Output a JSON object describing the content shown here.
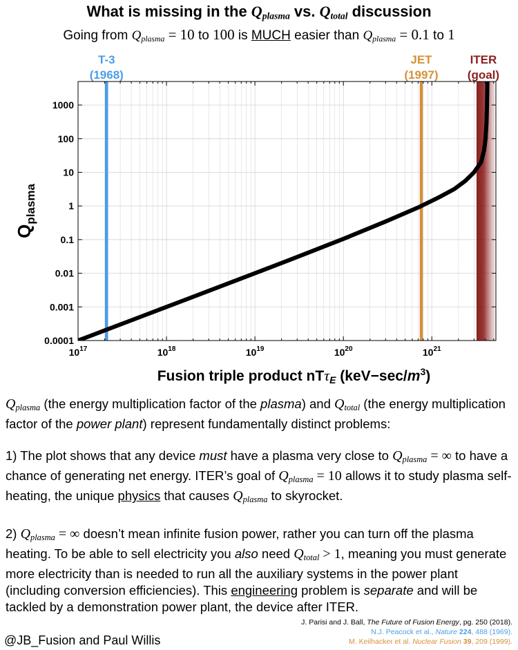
{
  "header": {
    "title_pre": "What is missing in the ",
    "title_mid": " vs. ",
    "title_post": " discussion",
    "q_plasma_base": "Q",
    "q_plasma_sub": "plasma",
    "q_total_base": "Q",
    "q_total_sub": "total",
    "subtitle_pre": "Going from ",
    "subtitle_eq1": " = 10",
    "subtitle_to1": " to ",
    "subtitle_v1": "100",
    "subtitle_is": " is ",
    "subtitle_much": "MUCH",
    "subtitle_easier": " easier than ",
    "subtitle_eq2": " = 0.1",
    "subtitle_to2": " to ",
    "subtitle_v2": "1"
  },
  "chart_data": {
    "type": "line",
    "x_scale": "log",
    "y_scale": "log",
    "xlim": [
      1e+17,
      5.3e+21
    ],
    "ylim": [
      0.0001,
      5000
    ],
    "xlabel_main": "Fusion triple product nT",
    "xlabel_tau": "τ",
    "xlabel_tau_sub": "E",
    "xlabel_units": " (keV−sec/",
    "xlabel_units_m": "m",
    "xlabel_units_exp": "3",
    "xlabel_close": ")",
    "ylabel_base": "Q",
    "ylabel_sub": "plasma",
    "x_ticks": [
      {
        "value": 1e+17,
        "base": "10",
        "exp": "17"
      },
      {
        "value": 1e+18,
        "base": "10",
        "exp": "18"
      },
      {
        "value": 1e+19,
        "base": "10",
        "exp": "19"
      },
      {
        "value": 1e+20,
        "base": "10",
        "exp": "20"
      },
      {
        "value": 1e+21,
        "base": "10",
        "exp": "21"
      }
    ],
    "y_ticks": [
      {
        "value": 0.0001,
        "label": "0.0001"
      },
      {
        "value": 0.001,
        "label": "0.001"
      },
      {
        "value": 0.01,
        "label": "0.01"
      },
      {
        "value": 0.1,
        "label": "0.1"
      },
      {
        "value": 1,
        "label": "1"
      },
      {
        "value": 10,
        "label": "10"
      },
      {
        "value": 100,
        "label": "100"
      },
      {
        "value": 1000,
        "label": "1000"
      }
    ],
    "grid": true,
    "series": [
      {
        "color": "#000000",
        "points": [
          [
            1e+17,
            0.0001
          ],
          [
            2e+17,
            0.0002
          ],
          [
            5e+17,
            0.0005
          ],
          [
            1e+18,
            0.001
          ],
          [
            3e+18,
            0.003
          ],
          [
            1e+19,
            0.01
          ],
          [
            3e+19,
            0.0304
          ],
          [
            1e+20,
            0.105
          ],
          [
            3e+20,
            0.345
          ],
          [
            7e+20,
            0.9
          ],
          [
            1.2e+21,
            1.8
          ],
          [
            1.8e+21,
            3.2
          ],
          [
            2.4e+21,
            5.6
          ],
          [
            3e+21,
            10
          ],
          [
            3.6e+21,
            20
          ],
          [
            3.9e+21,
            45
          ],
          [
            4.05e+21,
            100
          ],
          [
            4.15e+21,
            300
          ],
          [
            4.2e+21,
            1000
          ],
          [
            4.25e+21,
            5000
          ]
        ]
      }
    ],
    "markers": [
      {
        "name": "T-3",
        "year": "(1968)",
        "x": 2.1e+17,
        "color": "#4a9de8"
      },
      {
        "name": "JET",
        "year": "(1997)",
        "x": 7.6e+20,
        "color": "#d4913a"
      },
      {
        "name": "ITER",
        "year": "(goal)",
        "x_start": 3.2e+21,
        "x_end": 5.3e+21,
        "color": "#8b1f1f"
      }
    ]
  },
  "text": {
    "p1_a": " (the energy multiplication factor of the ",
    "p1_b": "plasma",
    "p1_c": ") and ",
    "p1_d": " (the energy multiplication factor of the ",
    "p1_e": "power plant",
    "p1_f": ") represent fundamentally distinct problems:",
    "p2_a": "1) The plot shows that any device ",
    "p2_b": "must",
    "p2_c": " have a plasma very close to ",
    "p2_eq_inf": " = ∞",
    "p2_d": " to have a chance of generating net energy. ITER’s goal of ",
    "p2_eq_10": " = 10",
    "p2_e": " allows it to study plasma self-heating, the unique ",
    "p2_f": "physics",
    "p2_g": " that causes ",
    "p2_h": " to skyrocket.",
    "p3_a": "2) ",
    "p3_eq_inf": " = ∞",
    "p3_b": " doesn’t mean infinite fusion power, rather you can turn off the plasma heating. To be able to sell electricity you ",
    "p3_c": "also",
    "p3_d": " need ",
    "p3_gt1": " > 1",
    "p3_e": ", meaning you must generate more electricity than is needed to run all the auxiliary systems in the power plant (including conversion efficiencies). This ",
    "p3_f": "engineering",
    "p3_g": " problem is ",
    "p3_h": "separate",
    "p3_i": " and will be tackled by a demonstration power plant, the device after ITER."
  },
  "refs": {
    "r1_a": "J. Parisi and J. Ball, ",
    "r1_b": "The Future of Fusion Energy",
    "r1_c": ", pg. 250 (2018).",
    "r2_a": "N.J. Peacock et al., ",
    "r2_b": "Nature",
    "r2_c": " 224",
    "r2_d": ", 488 (1969).",
    "r3_a": "M. Keilhacker et al. ",
    "r3_b": "Nuclear Fusion",
    "r3_c": " 39",
    "r3_d": ", 209 (1999).",
    "color_r2": "#4a9de8",
    "color_r3": "#d4913a"
  },
  "credit": "@JB_Fusion and Paul Willis"
}
